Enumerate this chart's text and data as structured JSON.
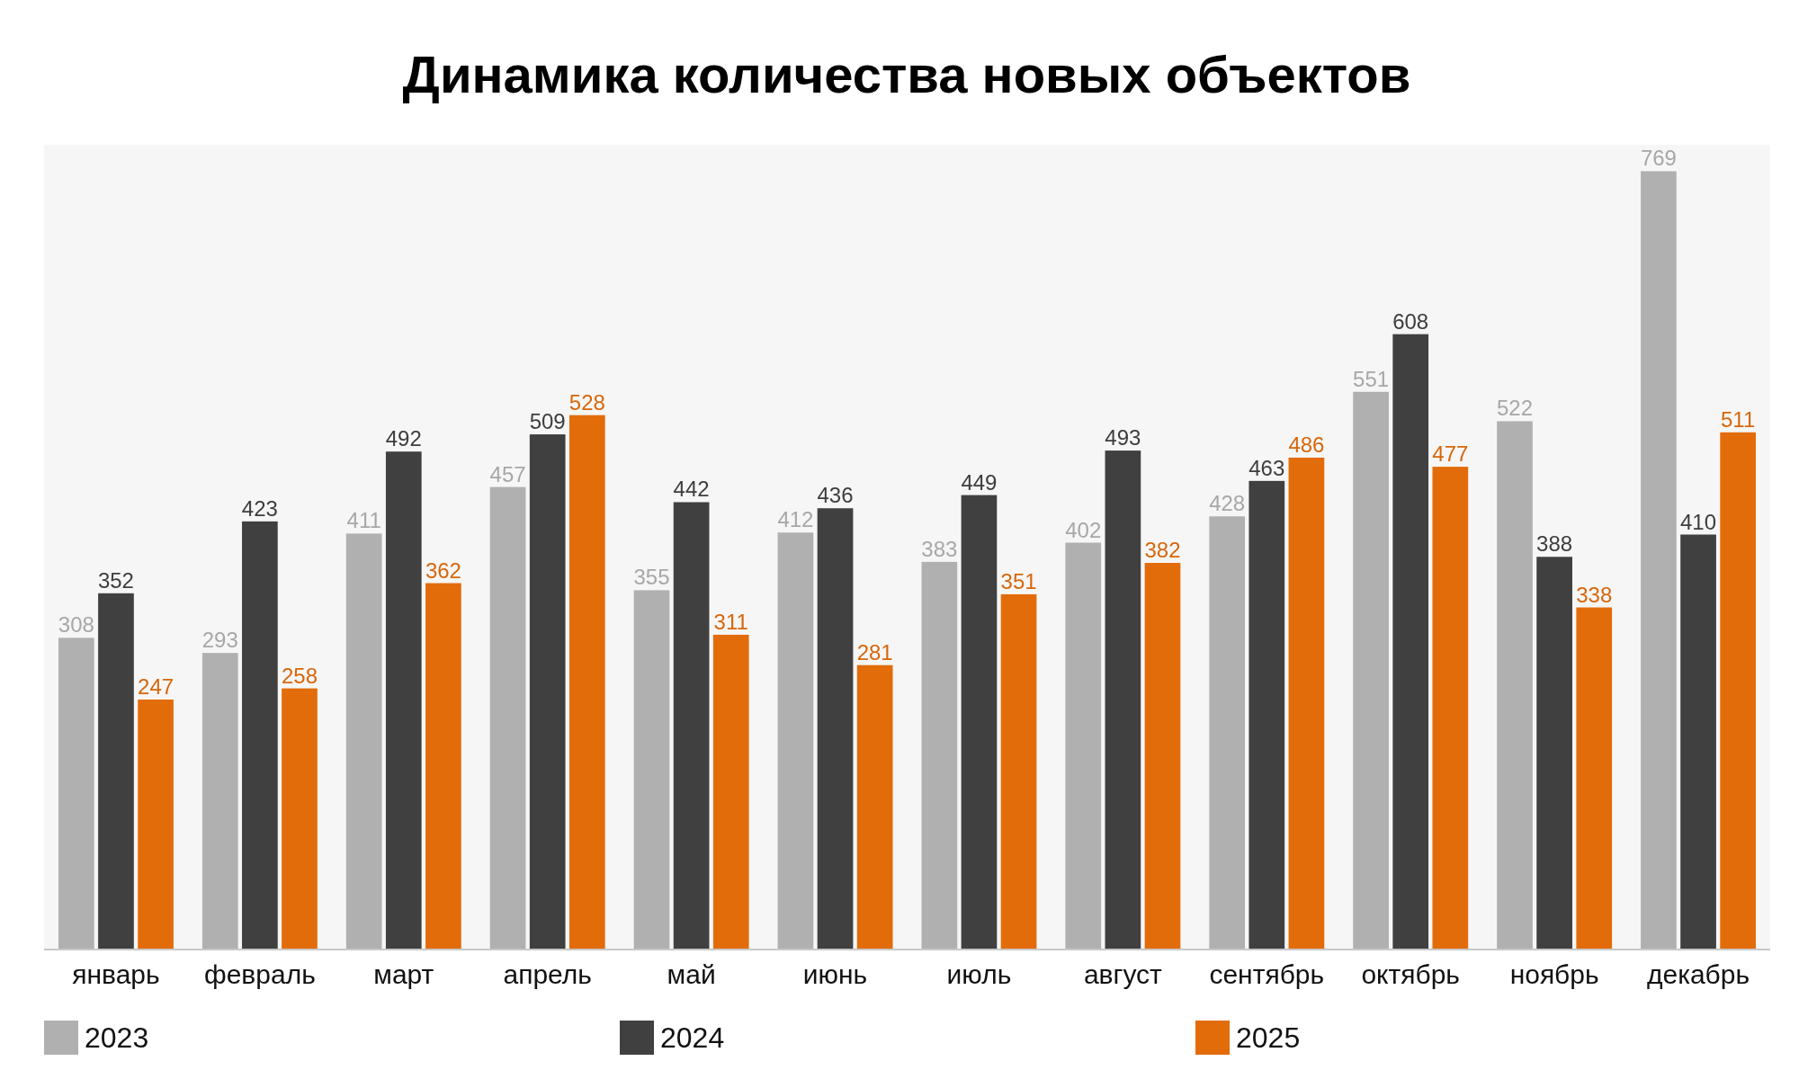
{
  "chart_data": {
    "type": "bar",
    "title": "Динамика количества новых объектов",
    "categories": [
      "январь",
      "февраль",
      "март",
      "апрель",
      "май",
      "июнь",
      "июль",
      "август",
      "сентябрь",
      "октябрь",
      "ноябрь",
      "декабрь"
    ],
    "series": [
      {
        "name": "2023",
        "color": "#b0b0b0",
        "values": [
          308,
          293,
          411,
          457,
          355,
          412,
          383,
          402,
          428,
          551,
          522,
          769
        ]
      },
      {
        "name": "2024",
        "color": "#404040",
        "values": [
          352,
          423,
          492,
          509,
          442,
          436,
          449,
          493,
          463,
          608,
          388,
          410
        ]
      },
      {
        "name": "2025",
        "color": "#e36c0a",
        "values": [
          247,
          258,
          362,
          528,
          311,
          281,
          351,
          382,
          486,
          477,
          338,
          511
        ]
      }
    ],
    "data_labels": true,
    "legend": "bottom"
  }
}
